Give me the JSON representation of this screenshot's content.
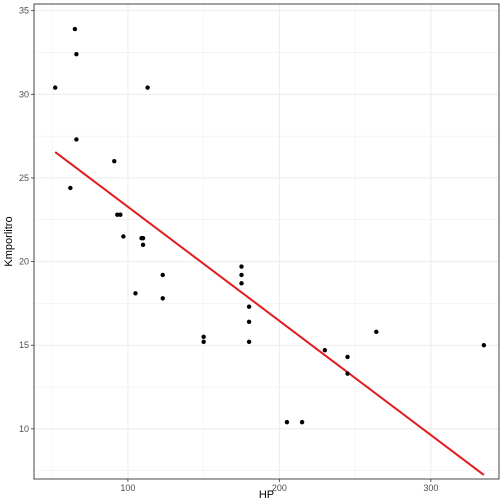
{
  "chart_data": {
    "type": "scatter",
    "title": "",
    "xlabel": "HP",
    "ylabel": "Kmporlitro",
    "xlim": [
      38,
      345
    ],
    "ylim": [
      7.0,
      35.4
    ],
    "x_ticks": [
      100,
      200,
      300
    ],
    "y_ticks": [
      10,
      15,
      20,
      25,
      30,
      35
    ],
    "grid": true,
    "legend": "none",
    "colors": {
      "points": "#000000",
      "fit_line": "#e41a1c",
      "grid": "#ebebeb",
      "panel_border": "#333333",
      "background": "#ffffff"
    },
    "points": [
      {
        "x": 52,
        "y": 30.4
      },
      {
        "x": 62,
        "y": 24.4
      },
      {
        "x": 65,
        "y": 33.9
      },
      {
        "x": 66,
        "y": 32.4
      },
      {
        "x": 66,
        "y": 27.3
      },
      {
        "x": 91,
        "y": 26.0
      },
      {
        "x": 93,
        "y": 22.8
      },
      {
        "x": 95,
        "y": 22.8
      },
      {
        "x": 97,
        "y": 21.5
      },
      {
        "x": 105,
        "y": 18.1
      },
      {
        "x": 109,
        "y": 21.4
      },
      {
        "x": 110,
        "y": 21.0
      },
      {
        "x": 110,
        "y": 21.4
      },
      {
        "x": 113,
        "y": 30.4
      },
      {
        "x": 123,
        "y": 19.2
      },
      {
        "x": 123,
        "y": 17.8
      },
      {
        "x": 150,
        "y": 15.5
      },
      {
        "x": 150,
        "y": 15.2
      },
      {
        "x": 175,
        "y": 19.7
      },
      {
        "x": 175,
        "y": 19.2
      },
      {
        "x": 175,
        "y": 18.7
      },
      {
        "x": 180,
        "y": 17.3
      },
      {
        "x": 180,
        "y": 16.4
      },
      {
        "x": 180,
        "y": 15.2
      },
      {
        "x": 205,
        "y": 10.4
      },
      {
        "x": 215,
        "y": 10.4
      },
      {
        "x": 230,
        "y": 14.7
      },
      {
        "x": 245,
        "y": 14.3
      },
      {
        "x": 245,
        "y": 13.3
      },
      {
        "x": 264,
        "y": 15.8
      },
      {
        "x": 335,
        "y": 15.0
      }
    ],
    "fit_line": {
      "x": [
        52,
        335
      ],
      "y": [
        26.55,
        7.24
      ]
    }
  }
}
